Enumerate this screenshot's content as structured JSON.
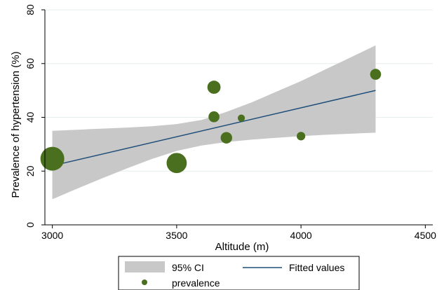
{
  "chart_data": {
    "type": "scatter",
    "xlabel": "Altitude (m)",
    "ylabel": "Prevalence of hypertension (%)",
    "xlim": [
      2970,
      4530
    ],
    "ylim": [
      0,
      80
    ],
    "xticks": [
      3000,
      3500,
      4000,
      4500
    ],
    "yticks": [
      0,
      20,
      40,
      60,
      80
    ],
    "xtick_labels": [
      "3000",
      "3500",
      "4000",
      "4500"
    ],
    "ytick_labels": [
      "0",
      "20",
      "40",
      "60",
      "80"
    ],
    "grid": "horizontal",
    "legend_position": "bottom",
    "series": [
      {
        "name": "95% CI",
        "kind": "band",
        "color": "#c8c8c8",
        "x": [
          3000,
          3100,
          3200,
          3300,
          3400,
          3500,
          3600,
          3700,
          3800,
          3900,
          4000,
          4100,
          4200,
          4300
        ],
        "lower": [
          9.5,
          13.5,
          17.3,
          21.0,
          24.5,
          27.5,
          29.5,
          30.8,
          31.7,
          32.4,
          33.0,
          33.5,
          33.9,
          34.3
        ],
        "upper": [
          35.0,
          35.4,
          35.8,
          36.2,
          36.7,
          37.5,
          39.0,
          42.0,
          45.5,
          49.5,
          53.5,
          57.9,
          62.3,
          66.8
        ]
      },
      {
        "name": "Fitted values",
        "kind": "line",
        "color": "#1f4e79",
        "x": [
          3000,
          4300
        ],
        "y": [
          22.0,
          50.0
        ]
      },
      {
        "name": "prevalence",
        "kind": "bubble",
        "color": "#4a6f1e",
        "points": [
          {
            "x": 3000,
            "y": 24.6,
            "size": 1.0
          },
          {
            "x": 3500,
            "y": 23.0,
            "size": 0.85
          },
          {
            "x": 3650,
            "y": 51.2,
            "size": 0.55
          },
          {
            "x": 3650,
            "y": 40.2,
            "size": 0.46
          },
          {
            "x": 3700,
            "y": 32.4,
            "size": 0.48
          },
          {
            "x": 3760,
            "y": 39.7,
            "size": 0.3
          },
          {
            "x": 4000,
            "y": 33.0,
            "size": 0.36
          },
          {
            "x": 4300,
            "y": 56.0,
            "size": 0.46
          }
        ]
      }
    ]
  }
}
